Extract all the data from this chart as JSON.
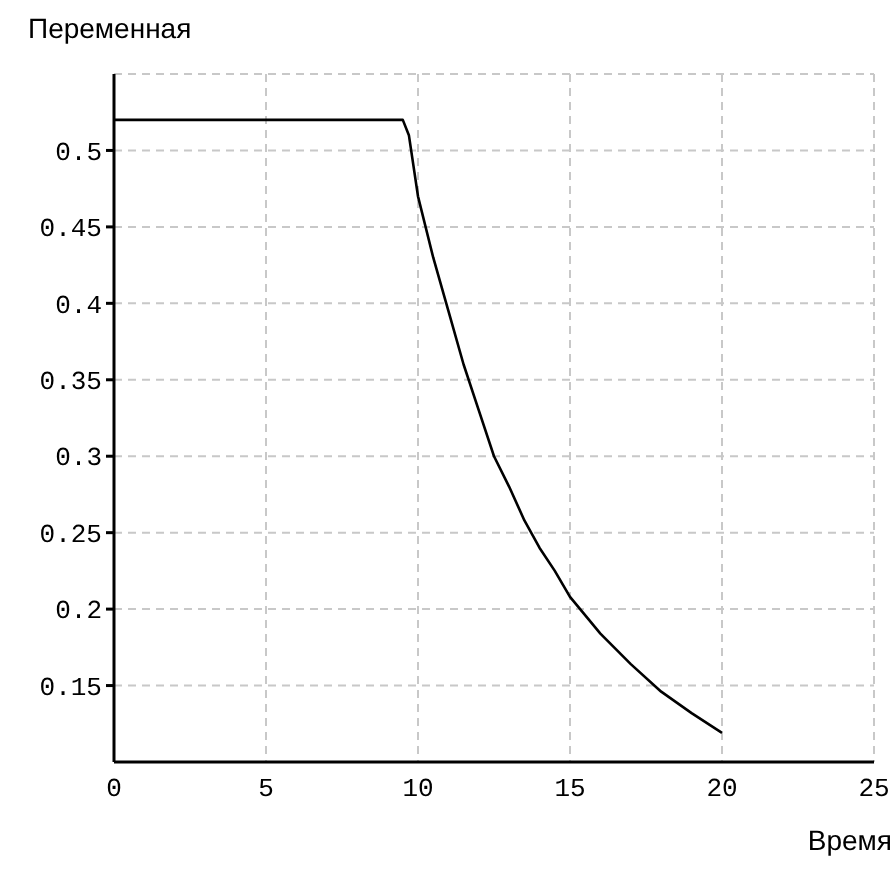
{
  "chart_data": {
    "type": "line",
    "ylabel": "Переменная",
    "xlabel": "Время",
    "x": [
      0,
      9.5,
      9.7,
      10,
      10.5,
      11,
      11.5,
      12,
      12.5,
      13,
      13.5,
      14,
      14.5,
      15,
      16,
      17,
      18,
      19,
      20
    ],
    "series": [
      {
        "color": "#000000",
        "values": [
          0.52,
          0.52,
          0.51,
          0.47,
          0.43,
          0.395,
          0.36,
          0.33,
          0.3,
          0.28,
          0.258,
          0.24,
          0.225,
          0.208,
          0.184,
          0.164,
          0.146,
          0.132,
          0.119
        ]
      }
    ],
    "xlim": [
      0,
      25
    ],
    "xticks": [
      0,
      5,
      10,
      15,
      20,
      25
    ],
    "ylim": [
      0.1,
      0.55
    ],
    "yticks": [
      0.15,
      0.2,
      0.25,
      0.3,
      0.35,
      0.4,
      0.45,
      0.5
    ],
    "grid": true,
    "legend": false,
    "marker": "none",
    "line_style": "solid"
  }
}
